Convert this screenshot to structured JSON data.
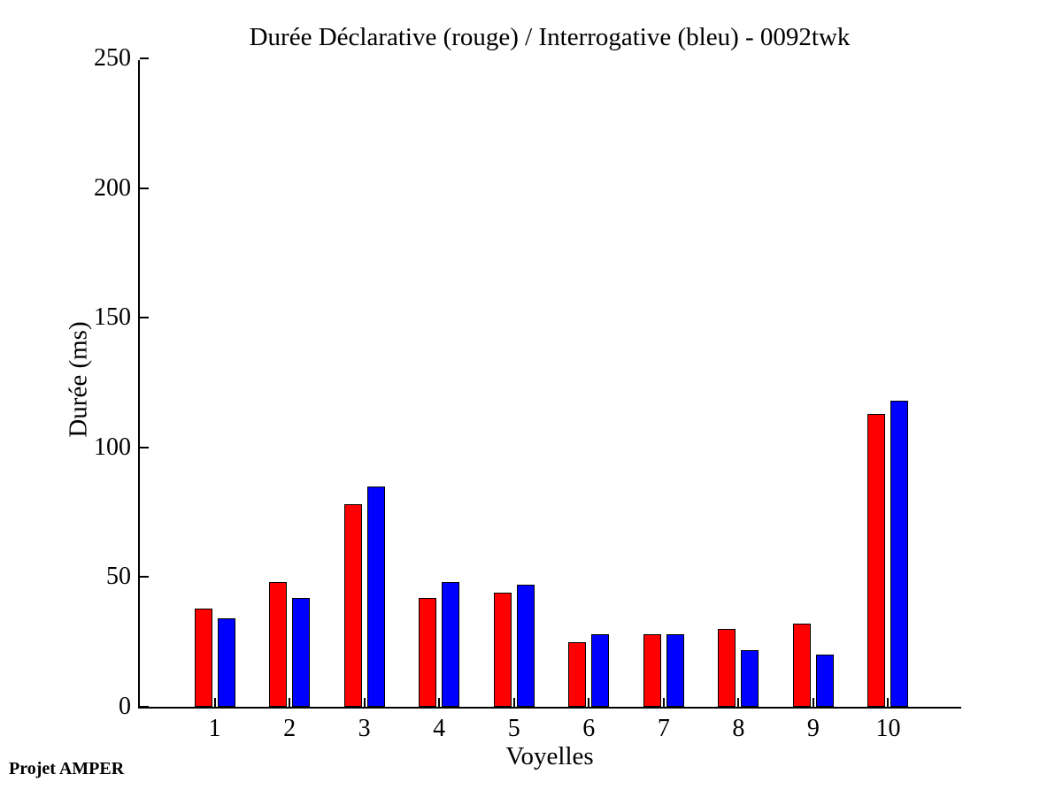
{
  "chart_data": {
    "type": "bar",
    "title": "Durée Déclarative (rouge) / Interrogative (bleu) - 0092twk",
    "xlabel": "Voyelles",
    "ylabel": "Durée (ms)",
    "categories": [
      "1",
      "2",
      "3",
      "4",
      "5",
      "6",
      "7",
      "8",
      "9",
      "10"
    ],
    "series": [
      {
        "name": "declarative",
        "label": "Déclarative (rouge)",
        "color": "#ff0000",
        "values": [
          38,
          48,
          78,
          42,
          44,
          25,
          28,
          30,
          32,
          113
        ]
      },
      {
        "name": "interrogative",
        "label": "Interrogative (bleu)",
        "color": "#0000ff",
        "values": [
          34,
          42,
          85,
          48,
          47,
          28,
          28,
          22,
          20,
          118
        ]
      }
    ],
    "ylim": [
      0,
      250
    ],
    "yticks": [
      0,
      50,
      100,
      150,
      200,
      250
    ],
    "xlim": [
      0,
      11
    ],
    "grid": false,
    "legend_position": "none",
    "axis_color": "#000000",
    "background_color": "#ffffff"
  },
  "footer": {
    "label": "Projet AMPER"
  }
}
